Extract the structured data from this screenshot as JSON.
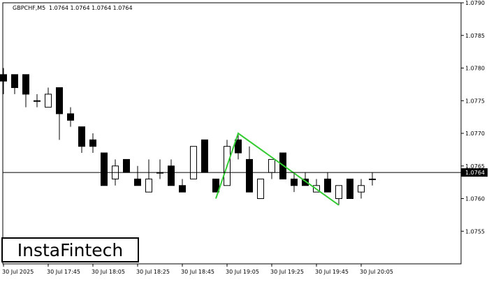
{
  "header": {
    "symbol_label": "GBPCHF,M5",
    "ohlc_text": "1.0764 1.0764 1.0764 1.0764"
  },
  "logo": {
    "text": "InstaFintech"
  },
  "current_price_label": "1.0764",
  "colors": {
    "bull_body": "#ffffff",
    "bear_body": "#000000",
    "pattern_line": "#33cc33",
    "axis": "#000000"
  },
  "chart_data": {
    "type": "candlestick",
    "symbol": "GBPCHF",
    "timeframe": "M5",
    "ylim": [
      1.075,
      1.079
    ],
    "y_ticks": [
      "1.0790",
      "1.0785",
      "1.0780",
      "1.0775",
      "1.0770",
      "1.0765",
      "1.0760",
      "1.0755"
    ],
    "x_tick_labels": [
      "30 Jul 2025",
      "30 Jul 17:45",
      "30 Jul 18:05",
      "30 Jul 18:25",
      "30 Jul 18:45",
      "30 Jul 19:05",
      "30 Jul 19:25",
      "30 Jul 19:45",
      "30 Jul 20:05"
    ],
    "x_tick_bar_index": [
      0,
      4,
      8,
      12,
      16,
      20,
      24,
      28,
      32
    ],
    "current_price": 1.0764,
    "candles": [
      {
        "o": 1.0779,
        "h": 1.078,
        "l": 1.0776,
        "c": 1.0778
      },
      {
        "o": 1.0779,
        "h": 1.0779,
        "l": 1.0776,
        "c": 1.0777
      },
      {
        "o": 1.0779,
        "h": 1.0779,
        "l": 1.0774,
        "c": 1.0776
      },
      {
        "o": 1.0775,
        "h": 1.0776,
        "l": 1.0774,
        "c": 1.0775
      },
      {
        "o": 1.0774,
        "h": 1.0777,
        "l": 1.0774,
        "c": 1.0776
      },
      {
        "o": 1.0777,
        "h": 1.0777,
        "l": 1.0769,
        "c": 1.0773
      },
      {
        "o": 1.0773,
        "h": 1.0774,
        "l": 1.0771,
        "c": 1.0772
      },
      {
        "o": 1.0771,
        "h": 1.0771,
        "l": 1.0767,
        "c": 1.0768
      },
      {
        "o": 1.0769,
        "h": 1.077,
        "l": 1.0767,
        "c": 1.0768
      },
      {
        "o": 1.0767,
        "h": 1.0767,
        "l": 1.0762,
        "c": 1.0762
      },
      {
        "o": 1.0763,
        "h": 1.0766,
        "l": 1.0762,
        "c": 1.0765
      },
      {
        "o": 1.0766,
        "h": 1.0766,
        "l": 1.0764,
        "c": 1.0764
      },
      {
        "o": 1.0763,
        "h": 1.0765,
        "l": 1.0762,
        "c": 1.0762
      },
      {
        "o": 1.0761,
        "h": 1.0766,
        "l": 1.0761,
        "c": 1.0763
      },
      {
        "o": 1.0764,
        "h": 1.0766,
        "l": 1.0763,
        "c": 1.0764
      },
      {
        "o": 1.0765,
        "h": 1.0766,
        "l": 1.0762,
        "c": 1.0762
      },
      {
        "o": 1.0762,
        "h": 1.0763,
        "l": 1.0761,
        "c": 1.0761
      },
      {
        "o": 1.0763,
        "h": 1.0768,
        "l": 1.0763,
        "c": 1.0768
      },
      {
        "o": 1.0769,
        "h": 1.0769,
        "l": 1.0764,
        "c": 1.0764
      },
      {
        "o": 1.0763,
        "h": 1.0763,
        "l": 1.0761,
        "c": 1.0761
      },
      {
        "o": 1.0762,
        "h": 1.0769,
        "l": 1.0762,
        "c": 1.0768
      },
      {
        "o": 1.0769,
        "h": 1.077,
        "l": 1.0766,
        "c": 1.0767
      },
      {
        "o": 1.0766,
        "h": 1.0768,
        "l": 1.0761,
        "c": 1.0761
      },
      {
        "o": 1.076,
        "h": 1.0763,
        "l": 1.076,
        "c": 1.0763
      },
      {
        "o": 1.0764,
        "h": 1.0766,
        "l": 1.0763,
        "c": 1.0766
      },
      {
        "o": 1.0767,
        "h": 1.0767,
        "l": 1.0763,
        "c": 1.0763
      },
      {
        "o": 1.0763,
        "h": 1.0764,
        "l": 1.0761,
        "c": 1.0762
      },
      {
        "o": 1.0763,
        "h": 1.0764,
        "l": 1.0762,
        "c": 1.0762
      },
      {
        "o": 1.0761,
        "h": 1.0763,
        "l": 1.0761,
        "c": 1.0762
      },
      {
        "o": 1.0763,
        "h": 1.0764,
        "l": 1.0761,
        "c": 1.0761
      },
      {
        "o": 1.076,
        "h": 1.0762,
        "l": 1.0759,
        "c": 1.0762
      },
      {
        "o": 1.0763,
        "h": 1.0763,
        "l": 1.076,
        "c": 1.076
      },
      {
        "o": 1.0761,
        "h": 1.0763,
        "l": 1.076,
        "c": 1.0762
      },
      {
        "o": 1.0763,
        "h": 1.0764,
        "l": 1.0762,
        "c": 1.0763
      }
    ],
    "pattern_line": [
      {
        "bar": 19,
        "price": 1.076
      },
      {
        "bar": 21,
        "price": 1.077
      },
      {
        "bar": 30,
        "price": 1.0759
      }
    ]
  }
}
